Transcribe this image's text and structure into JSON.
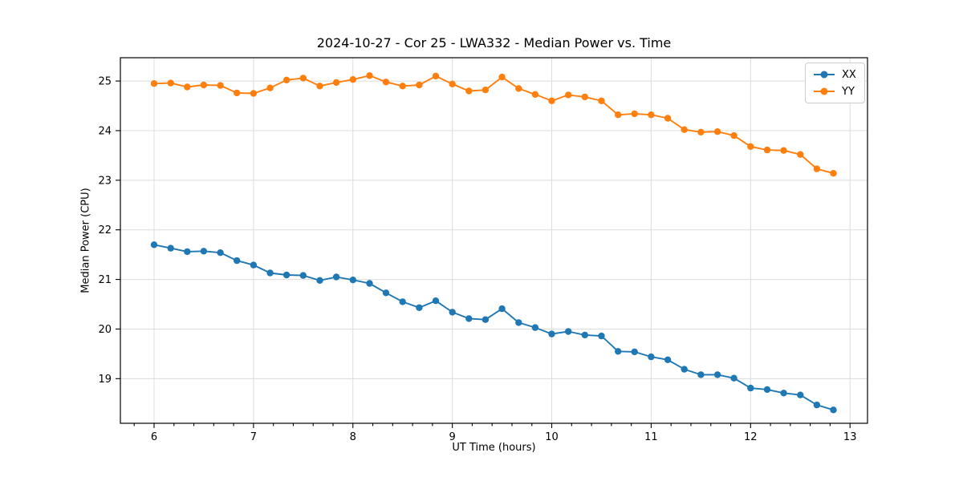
{
  "chart_data": {
    "type": "line",
    "title": "2024-10-27 - Cor 25 - LWA332 - Median Power vs. Time",
    "xlabel": "UT Time (hours)",
    "ylabel": "Median Power (CPU)",
    "xlim": [
      5.661,
      13.176
    ],
    "ylim": [
      18.1,
      25.47
    ],
    "xticks": [
      6,
      7,
      8,
      9,
      10,
      11,
      12,
      13
    ],
    "yticks": [
      19,
      20,
      21,
      22,
      23,
      24,
      25
    ],
    "x_minor_step": 0.2,
    "grid": true,
    "legend_position": "upper right",
    "x": [
      6.0,
      6.167,
      6.333,
      6.5,
      6.667,
      6.833,
      7.0,
      7.167,
      7.333,
      7.5,
      7.667,
      7.833,
      8.0,
      8.167,
      8.333,
      8.5,
      8.667,
      8.833,
      9.0,
      9.167,
      9.333,
      9.5,
      9.667,
      9.833,
      10.0,
      10.167,
      10.333,
      10.5,
      10.667,
      10.833,
      11.0,
      11.167,
      11.333,
      11.5,
      11.667,
      11.833,
      12.0,
      12.167,
      12.333,
      12.5,
      12.667,
      12.833
    ],
    "series": [
      {
        "name": "XX",
        "color": "#1f77b4",
        "values": [
          21.7,
          21.63,
          21.56,
          21.57,
          21.54,
          21.38,
          21.29,
          21.13,
          21.09,
          21.08,
          20.98,
          21.05,
          20.99,
          20.92,
          20.73,
          20.55,
          20.43,
          20.57,
          20.34,
          20.21,
          20.19,
          20.41,
          20.13,
          20.03,
          19.9,
          19.95,
          19.88,
          19.86,
          19.55,
          19.54,
          19.44,
          19.38,
          19.19,
          19.08,
          19.08,
          19.01,
          18.81,
          18.78,
          18.71,
          18.67,
          18.47,
          18.37
        ]
      },
      {
        "name": "YY",
        "color": "#ff7f0e",
        "values": [
          24.95,
          24.96,
          24.88,
          24.92,
          24.91,
          24.76,
          24.75,
          24.86,
          25.02,
          25.06,
          24.9,
          24.97,
          25.03,
          25.11,
          24.98,
          24.9,
          24.92,
          25.1,
          24.94,
          24.8,
          24.82,
          25.08,
          24.85,
          24.73,
          24.6,
          24.72,
          24.68,
          24.6,
          24.32,
          24.34,
          24.32,
          24.25,
          24.02,
          23.97,
          23.98,
          23.9,
          23.68,
          23.61,
          23.6,
          23.52,
          23.23,
          23.14
        ]
      }
    ]
  }
}
